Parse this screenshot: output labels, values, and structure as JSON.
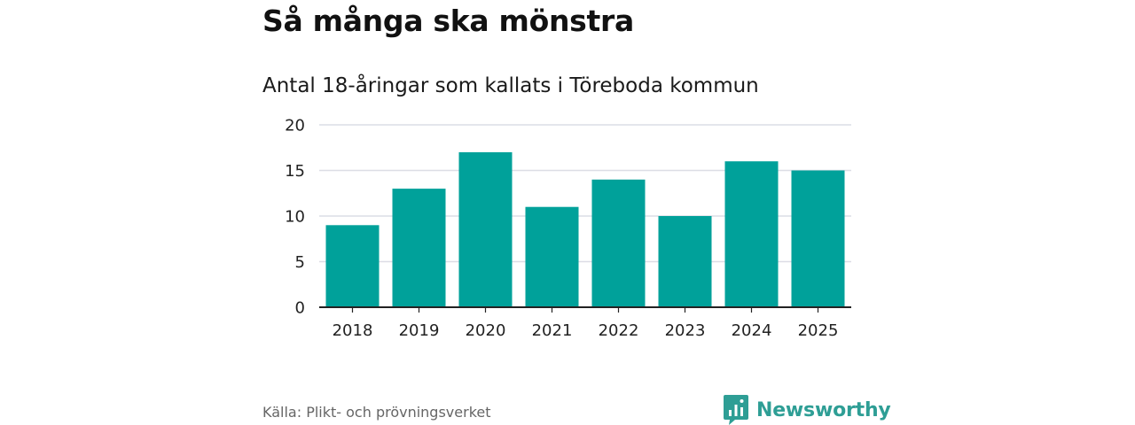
{
  "title": "Så många ska mönstra",
  "subtitle": "Antal 18-åringar som kallats i Töreboda kommun",
  "source": "Källa: Plikt- och prövningsverket",
  "brand": {
    "name": "Newsworthy",
    "color": "#2e9e95"
  },
  "colors": {
    "bar": "#00a19a",
    "grid": "#dcdde5",
    "axis": "#222222"
  },
  "chart_data": {
    "type": "bar",
    "title": "Så många ska mönstra",
    "subtitle": "Antal 18-åringar som kallats i Töreboda kommun",
    "categories": [
      "2018",
      "2019",
      "2020",
      "2021",
      "2022",
      "2023",
      "2024",
      "2025"
    ],
    "values": [
      9,
      13,
      17,
      11,
      14,
      10,
      16,
      15
    ],
    "xlabel": "",
    "ylabel": "",
    "ylim": [
      0,
      20
    ],
    "yticks": [
      0,
      5,
      10,
      15,
      20
    ],
    "grid": true,
    "legend": "none"
  }
}
